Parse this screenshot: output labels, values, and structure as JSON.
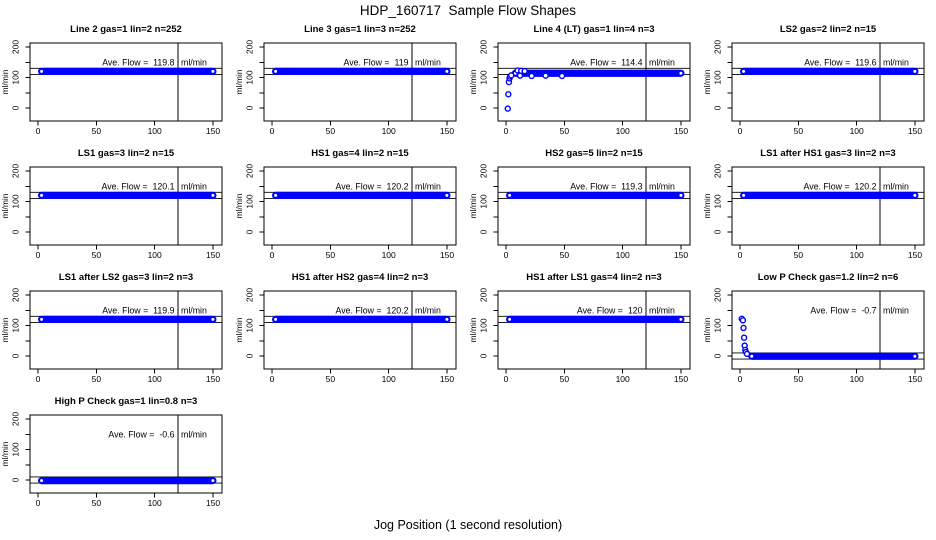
{
  "page": {
    "title": "HDP_160717  Sample Flow Shapes",
    "xlabel": "Jog Position (1 second resolution)",
    "background": "#ffffff",
    "text_color": "#000000"
  },
  "chart_data": {
    "type": "scatter",
    "title": "HDP_160717  Sample Flow Shapes",
    "xlabel": "Jog Position (1 second resolution)",
    "ylabel": "ml/min",
    "marker_color": "#0000ff",
    "line_color": "#000000",
    "unit": "ml/min",
    "annotation_prefix": "Ave. Flow =",
    "grid": {
      "rows": 4,
      "cols": 4
    },
    "axes": {
      "xlim": [
        -7,
        158
      ],
      "ylim": [
        -42,
        213
      ],
      "x_ticks": [
        0,
        50,
        100,
        150
      ],
      "y_ticks": [
        0,
        50,
        100,
        150,
        200
      ],
      "y_labeled_ticks": [
        0,
        100,
        200
      ],
      "grid_lines": false
    },
    "vline_x": 120,
    "subplots": [
      {
        "title": "Line 2 gas=1 lin=2 n=252",
        "ave_flow": 119.8,
        "ave_flow_text": "119.8",
        "hlines": [
          110,
          130
        ],
        "band": {
          "x0": 0,
          "x1": 153,
          "y": 120
        },
        "points": []
      },
      {
        "title": "Line 3 gas=1 lin=3 n=252",
        "ave_flow": 119,
        "ave_flow_text": "119",
        "hlines": [
          110,
          130
        ],
        "band": {
          "x0": 0,
          "x1": 153,
          "y": 120
        },
        "points": []
      },
      {
        "title": "Line 4 (LT) gas=1 lin=4 n=3",
        "ave_flow": 114.4,
        "ave_flow_text": "114.4",
        "hlines": [
          110,
          130
        ],
        "band": {
          "x0": 5,
          "x1": 153,
          "y": 114
        },
        "points": [
          [
            1.5,
            -2
          ],
          [
            2,
            45
          ],
          [
            2.5,
            85
          ],
          [
            3,
            97
          ],
          [
            3.5,
            103
          ],
          [
            4.5,
            107
          ],
          [
            10,
            123
          ],
          [
            13,
            122
          ],
          [
            16,
            121
          ],
          [
            12,
            106
          ],
          [
            22,
            105
          ],
          [
            34,
            106
          ],
          [
            48,
            105
          ]
        ]
      },
      {
        "title": "LS2 gas=2 lin=2 n=15",
        "ave_flow": 119.6,
        "ave_flow_text": "119.6",
        "hlines": [
          110,
          130
        ],
        "band": {
          "x0": 0,
          "x1": 153,
          "y": 120
        },
        "points": []
      },
      {
        "title": "LS1 gas=3 lin=2 n=15",
        "ave_flow": 120.1,
        "ave_flow_text": "120.1",
        "hlines": [
          110,
          130
        ],
        "band": {
          "x0": 0,
          "x1": 153,
          "y": 120
        },
        "points": []
      },
      {
        "title": "HS1 gas=4 lin=2 n=15",
        "ave_flow": 120.2,
        "ave_flow_text": "120.2",
        "hlines": [
          110,
          130
        ],
        "band": {
          "x0": 0,
          "x1": 153,
          "y": 120
        },
        "points": []
      },
      {
        "title": "HS2 gas=5 lin=2 n=15",
        "ave_flow": 119.3,
        "ave_flow_text": "119.3",
        "hlines": [
          110,
          130
        ],
        "band": {
          "x0": 0,
          "x1": 153,
          "y": 120
        },
        "points": []
      },
      {
        "title": "LS1 after HS1 gas=3 lin=2 n=3",
        "ave_flow": 120.2,
        "ave_flow_text": "120.2",
        "hlines": [
          110,
          130
        ],
        "band": {
          "x0": 0,
          "x1": 153,
          "y": 120
        },
        "points": []
      },
      {
        "title": "LS1 after LS2 gas=3 lin=2 n=3",
        "ave_flow": 119.9,
        "ave_flow_text": "119.9",
        "hlines": [
          110,
          130
        ],
        "band": {
          "x0": 0,
          "x1": 153,
          "y": 120
        },
        "points": []
      },
      {
        "title": "HS1 after HS2 gas=4 lin=2 n=3",
        "ave_flow": 120.2,
        "ave_flow_text": "120.2",
        "hlines": [
          110,
          130
        ],
        "band": {
          "x0": 0,
          "x1": 153,
          "y": 120
        },
        "points": []
      },
      {
        "title": "HS1 after LS1 gas=4 lin=2 n=3",
        "ave_flow": 120,
        "ave_flow_text": "120",
        "hlines": [
          110,
          130
        ],
        "band": {
          "x0": 0,
          "x1": 153,
          "y": 120
        },
        "points": []
      },
      {
        "title": "Low P Check gas=1.2 lin=2 n=6",
        "ave_flow": -0.7,
        "ave_flow_text": "-0.7",
        "hlines": [
          -10,
          10
        ],
        "band": {
          "x0": 7,
          "x1": 153,
          "y": -1
        },
        "points": [
          [
            1.5,
            122
          ],
          [
            2.5,
            117
          ],
          [
            3,
            92
          ],
          [
            3.5,
            60
          ],
          [
            4,
            34
          ],
          [
            4.5,
            20
          ],
          [
            5,
            13
          ],
          [
            6,
            7
          ]
        ]
      },
      {
        "title": "High P Check gas=1 lin=0.8 n=3",
        "ave_flow": -0.6,
        "ave_flow_text": "-0.6",
        "hlines": [
          -10,
          10
        ],
        "band": {
          "x0": 0,
          "x1": 153,
          "y": -2
        },
        "points": []
      }
    ]
  }
}
